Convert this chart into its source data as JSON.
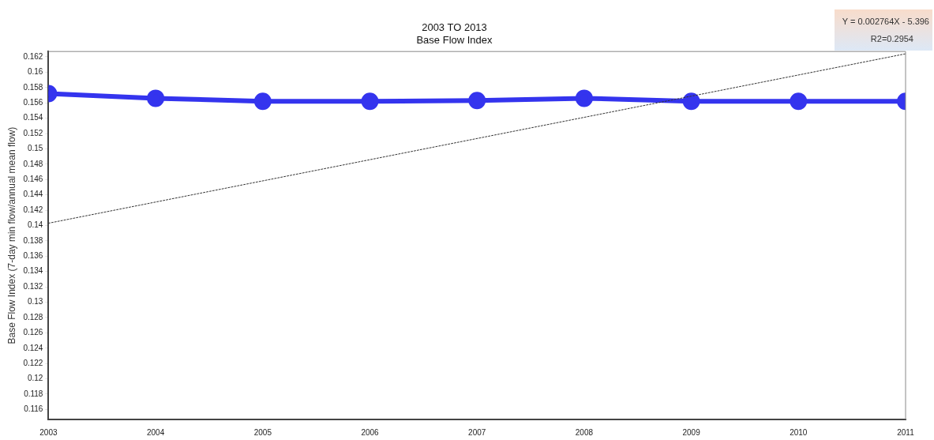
{
  "chart_data": {
    "type": "line",
    "title": "2003 TO 2013",
    "subtitle": "Base Flow Index",
    "ylabel": "Base Flow Index (7-day min flow/annual mean flow)",
    "x": [
      2003,
      2004,
      2005,
      2006,
      2007,
      2008,
      2009,
      2010,
      2011
    ],
    "series": [
      {
        "color": "#3434ee",
        "values": [
          0.1572,
          0.1566,
          0.1562,
          0.1562,
          0.1563,
          0.1566,
          0.1562,
          0.1562,
          0.1562
        ]
      },
      {
        "type": "line",
        "color": "#333333",
        "x": [
          2003,
          2011
        ],
        "values": [
          0.1403,
          0.1624
        ],
        "line_style": "dotted",
        "marker": "none"
      }
    ],
    "xlim": [
      2003,
      2011
    ],
    "xticks": [
      2003,
      2004,
      2005,
      2006,
      2007,
      2008,
      2009,
      2010,
      2011
    ],
    "ylim": [
      0.1147,
      0.1627
    ],
    "yticks": [
      0.116,
      0.118,
      0.12,
      0.122,
      0.124,
      0.126,
      0.128,
      0.13,
      0.132,
      0.134,
      0.136,
      0.138,
      0.14,
      0.142,
      0.144,
      0.146,
      0.148,
      0.15,
      0.152,
      0.154,
      0.156,
      0.158,
      0.16,
      0.162
    ],
    "annotations": [
      "Y = 0.002764X - 5.396",
      "R2=0.2954"
    ],
    "grid": false,
    "legend": false,
    "marker": "circle",
    "line_style": "solid"
  }
}
